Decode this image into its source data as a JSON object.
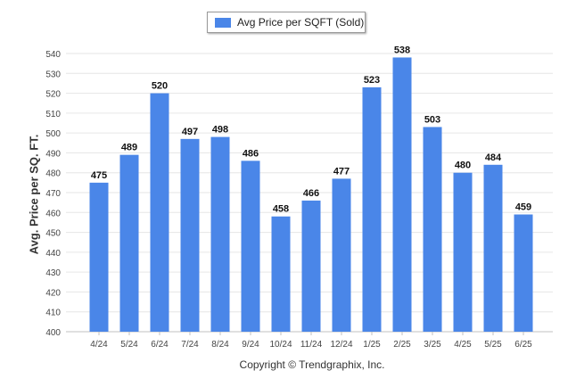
{
  "chart_data": {
    "type": "bar",
    "categories": [
      "4/24",
      "5/24",
      "6/24",
      "7/24",
      "8/24",
      "9/24",
      "10/24",
      "11/24",
      "12/24",
      "1/25",
      "2/25",
      "3/25",
      "4/25",
      "5/25",
      "6/25"
    ],
    "series": [
      {
        "name": "Avg Price per SQFT (Sold)",
        "values": [
          475,
          489,
          520,
          497,
          498,
          486,
          458,
          466,
          477,
          523,
          538,
          503,
          480,
          484,
          459
        ],
        "color": "#4a86e8"
      }
    ],
    "title": "",
    "xlabel": "",
    "ylabel": "Avg. Price per SQ. FT.",
    "ylim": [
      400,
      540
    ],
    "yticks": [
      400,
      410,
      420,
      430,
      440,
      450,
      460,
      470,
      480,
      490,
      500,
      510,
      520,
      530,
      540
    ],
    "grid": true,
    "legend_position": "top-center",
    "footer": "Copyright © Trendgraphix, Inc."
  }
}
